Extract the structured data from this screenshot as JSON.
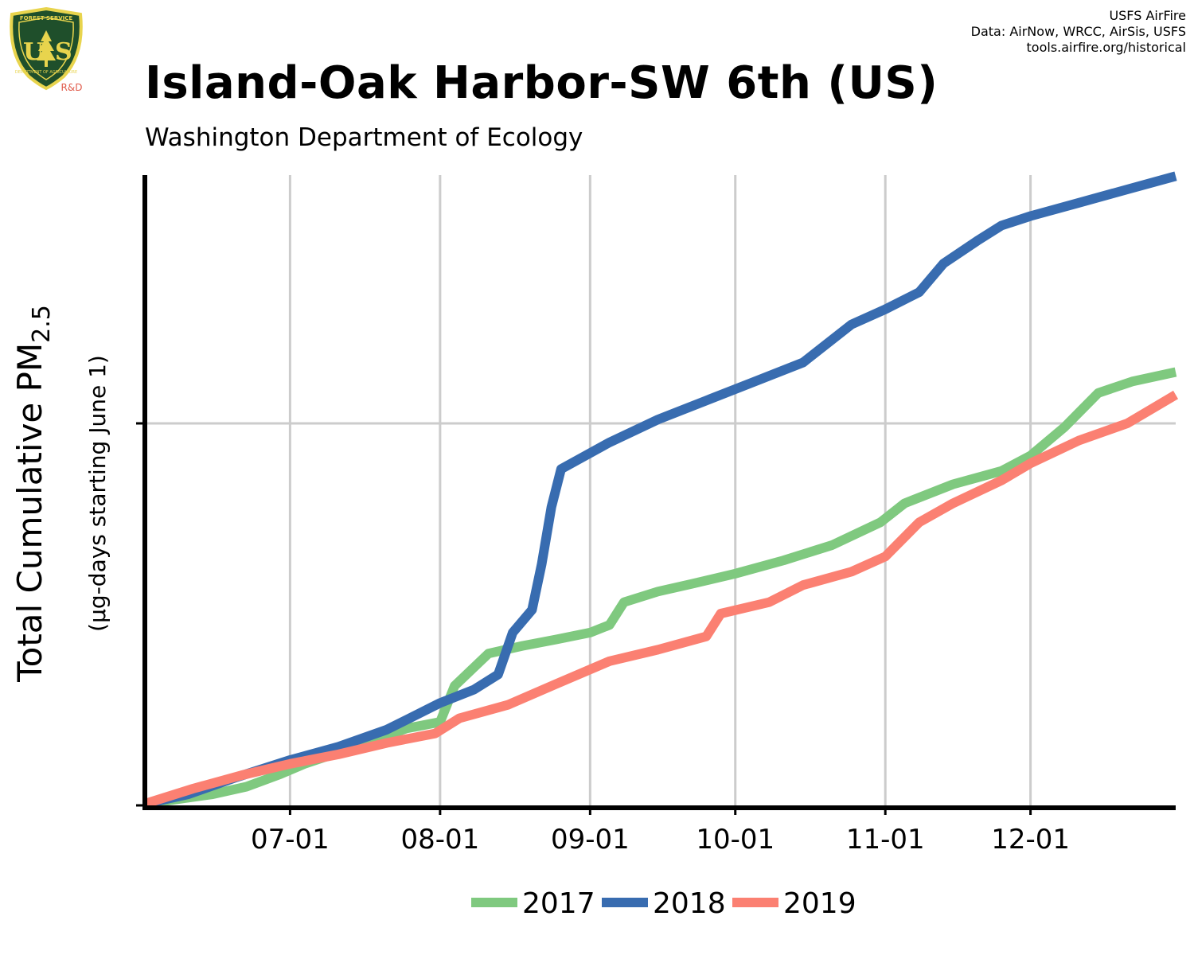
{
  "header": {
    "title": "Island-Oak Harbor-SW 6th (US)",
    "subtitle": "Washington Department of Ecology"
  },
  "credits": {
    "line1": "USFS AirFire",
    "line2": "Data: AirNow, WRCC, AirSis, USFS",
    "line3": "tools.airfire.org/historical"
  },
  "logo": {
    "text_top": "FOREST SERVICE",
    "letters": "US",
    "text_bottom": "DEPARTMENT OF AGRICULTURE",
    "tag": "R&D",
    "icon": "usfs-shield-icon"
  },
  "colors": {
    "s2017": "#7fc97f",
    "s2018": "#386cb0",
    "s2019": "#fb8072",
    "grid": "#cccccc",
    "logo_green": "#1f4f2b",
    "logo_gold": "#e8d44d",
    "logo_red": "#e05a4a"
  },
  "chart_data": {
    "type": "line",
    "ylabel_main": "Total Cumulative PM",
    "ylabel_sub": "2.5",
    "ylabel2": "(µg-days starting June 1)",
    "x_range": [
      "06-01",
      "12-31"
    ],
    "x_ticks": [
      {
        "label": "07-01",
        "x": "07-01"
      },
      {
        "label": "08-01",
        "x": "08-01"
      },
      {
        "label": "09-01",
        "x": "09-01"
      },
      {
        "label": "10-01",
        "x": "10-01"
      },
      {
        "label": "11-01",
        "x": "11-01"
      },
      {
        "label": "12-01",
        "x": "12-01"
      }
    ],
    "y_range": [
      0,
      1600
    ],
    "y_ticks": [
      0,
      1000
    ],
    "y_tick_labels_shown": false,
    "grid": true,
    "legend_position": "bottom",
    "series": [
      {
        "name": "2017",
        "color": "#7fc97f",
        "points": [
          [
            "06-01",
            0
          ],
          [
            "06-15",
            25
          ],
          [
            "06-22",
            45
          ],
          [
            "06-29",
            78
          ],
          [
            "07-04",
            105
          ],
          [
            "07-11",
            135
          ],
          [
            "07-18",
            165
          ],
          [
            "07-25",
            198
          ],
          [
            "08-01",
            215
          ],
          [
            "08-04",
            310
          ],
          [
            "08-11",
            395
          ],
          [
            "08-18",
            415
          ],
          [
            "08-25",
            432
          ],
          [
            "09-01",
            450
          ],
          [
            "09-05",
            470
          ],
          [
            "09-08",
            530
          ],
          [
            "09-15",
            558
          ],
          [
            "09-22",
            578
          ],
          [
            "10-01",
            605
          ],
          [
            "10-11",
            640
          ],
          [
            "10-21",
            680
          ],
          [
            "10-31",
            740
          ],
          [
            "11-05",
            790
          ],
          [
            "11-15",
            840
          ],
          [
            "11-25",
            875
          ],
          [
            "12-01",
            915
          ],
          [
            "12-08",
            990
          ],
          [
            "12-15",
            1080
          ],
          [
            "12-22",
            1110
          ],
          [
            "12-31",
            1135
          ]
        ]
      },
      {
        "name": "2018",
        "color": "#386cb0",
        "points": [
          [
            "06-01",
            0
          ],
          [
            "06-10",
            25
          ],
          [
            "06-20",
            70
          ],
          [
            "07-01",
            115
          ],
          [
            "07-11",
            150
          ],
          [
            "07-21",
            195
          ],
          [
            "08-01",
            265
          ],
          [
            "08-08",
            300
          ],
          [
            "08-13",
            340
          ],
          [
            "08-16",
            450
          ],
          [
            "08-20",
            510
          ],
          [
            "08-22",
            630
          ],
          [
            "08-24",
            780
          ],
          [
            "08-26",
            880
          ],
          [
            "08-31",
            915
          ],
          [
            "09-05",
            950
          ],
          [
            "09-15",
            1010
          ],
          [
            "09-25",
            1060
          ],
          [
            "10-05",
            1110
          ],
          [
            "10-15",
            1160
          ],
          [
            "10-25",
            1260
          ],
          [
            "11-01",
            1300
          ],
          [
            "11-08",
            1345
          ],
          [
            "11-13",
            1420
          ],
          [
            "11-20",
            1480
          ],
          [
            "11-25",
            1520
          ],
          [
            "12-01",
            1545
          ],
          [
            "12-11",
            1580
          ],
          [
            "12-21",
            1615
          ],
          [
            "12-31",
            1650
          ]
        ]
      },
      {
        "name": "2019",
        "color": "#fb8072",
        "points": [
          [
            "06-01",
            0
          ],
          [
            "06-11",
            40
          ],
          [
            "06-21",
            75
          ],
          [
            "07-01",
            105
          ],
          [
            "07-11",
            130
          ],
          [
            "07-21",
            160
          ],
          [
            "07-31",
            185
          ],
          [
            "08-05",
            225
          ],
          [
            "08-15",
            260
          ],
          [
            "08-25",
            315
          ],
          [
            "09-05",
            375
          ],
          [
            "09-15",
            405
          ],
          [
            "09-25",
            440
          ],
          [
            "09-28",
            500
          ],
          [
            "10-08",
            530
          ],
          [
            "10-15",
            575
          ],
          [
            "10-25",
            610
          ],
          [
            "11-01",
            650
          ],
          [
            "11-08",
            740
          ],
          [
            "11-15",
            790
          ],
          [
            "11-25",
            850
          ],
          [
            "12-01",
            895
          ],
          [
            "12-11",
            955
          ],
          [
            "12-21",
            1000
          ],
          [
            "12-31",
            1075
          ]
        ]
      }
    ]
  }
}
